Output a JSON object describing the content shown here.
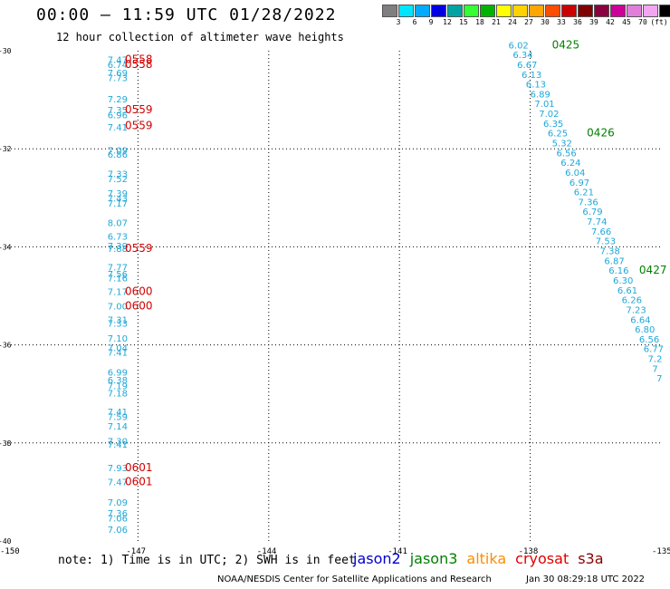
{
  "header": {
    "title": "00:00 – 11:59 UTC 01/28/2022",
    "subtitle": "12 hour collection of altimeter wave heights"
  },
  "color_scale": {
    "colors": [
      "#7f7f7f",
      "#00e5ff",
      "#00aaff",
      "#0000e6",
      "#00a3a3",
      "#33ff33",
      "#00b300",
      "#ffff00",
      "#ffd200",
      "#ffa500",
      "#ff4d00",
      "#cc0000",
      "#800000",
      "#8b0040",
      "#cc0099",
      "#e07fd9",
      "#f2a6f2",
      "#000000"
    ],
    "labels": [
      "3",
      "6",
      "9",
      "12",
      "15",
      "18",
      "21",
      "24",
      "27",
      "30",
      "33",
      "36",
      "39",
      "42",
      "45",
      "70",
      "(ft)"
    ]
  },
  "map": {
    "lon_range": [
      -150,
      -135
    ],
    "lat_range": [
      -40,
      -30
    ],
    "x_tick_labels": [
      "-150",
      "-147",
      "-144",
      "-141",
      "-138",
      "-135"
    ],
    "y_tick_labels": [
      "-30",
      "-32",
      "-34",
      "-36",
      "-38",
      "-40"
    ],
    "swh_color": "#1fa8d8",
    "time_color": "#d40000",
    "time_color_jason3": "#008000",
    "track_west": [
      {
        "lon": -147.7,
        "lat": -30.25,
        "v": "7.47"
      },
      {
        "lon": -147.7,
        "lat": -30.35,
        "v": "6.74"
      },
      {
        "lon": -147.7,
        "lat": -30.52,
        "v": "7.69"
      },
      {
        "lon": -147.7,
        "lat": -30.62,
        "v": "7.73"
      },
      {
        "lon": -147.7,
        "lat": -31.05,
        "v": "7.29"
      },
      {
        "lon": -147.7,
        "lat": -31.28,
        "v": "7.35"
      },
      {
        "lon": -147.7,
        "lat": -31.38,
        "v": "6.96"
      },
      {
        "lon": -147.7,
        "lat": -31.63,
        "v": "7.41"
      },
      {
        "lon": -147.7,
        "lat": -32.1,
        "v": "7.09"
      },
      {
        "lon": -147.7,
        "lat": -32.18,
        "v": "6.86"
      },
      {
        "lon": -147.7,
        "lat": -32.58,
        "v": "7.33"
      },
      {
        "lon": -147.7,
        "lat": -32.68,
        "v": "7.52"
      },
      {
        "lon": -147.7,
        "lat": -32.98,
        "v": "7.39"
      },
      {
        "lon": -147.7,
        "lat": -33.08,
        "v": "7.43"
      },
      {
        "lon": -147.7,
        "lat": -33.18,
        "v": "7.17"
      },
      {
        "lon": -147.7,
        "lat": -33.58,
        "v": "8.07"
      },
      {
        "lon": -147.7,
        "lat": -33.85,
        "v": "6.73"
      },
      {
        "lon": -147.7,
        "lat": -34.05,
        "v": "7.39"
      },
      {
        "lon": -147.7,
        "lat": -34.1,
        "v": "7.88"
      },
      {
        "lon": -147.7,
        "lat": -34.48,
        "v": "7.77"
      },
      {
        "lon": -147.7,
        "lat": -34.62,
        "v": "7.56"
      },
      {
        "lon": -147.7,
        "lat": -34.7,
        "v": "7.16"
      },
      {
        "lon": -147.7,
        "lat": -34.98,
        "v": "7.17"
      },
      {
        "lon": -147.7,
        "lat": -35.28,
        "v": "7.00"
      },
      {
        "lon": -147.7,
        "lat": -35.55,
        "v": "7.31"
      },
      {
        "lon": -147.7,
        "lat": -35.63,
        "v": "7.33"
      },
      {
        "lon": -147.7,
        "lat": -35.93,
        "v": "7.10"
      },
      {
        "lon": -147.7,
        "lat": -36.13,
        "v": "7.04"
      },
      {
        "lon": -147.7,
        "lat": -36.22,
        "v": "7.41"
      },
      {
        "lon": -147.7,
        "lat": -36.63,
        "v": "6.99"
      },
      {
        "lon": -147.7,
        "lat": -36.78,
        "v": "6.38"
      },
      {
        "lon": -147.7,
        "lat": -36.9,
        "v": "7.19"
      },
      {
        "lon": -147.7,
        "lat": -37.05,
        "v": "7.18"
      },
      {
        "lon": -147.7,
        "lat": -37.43,
        "v": "7.41"
      },
      {
        "lon": -147.7,
        "lat": -37.53,
        "v": "7.59"
      },
      {
        "lon": -147.7,
        "lat": -37.73,
        "v": "7.14"
      },
      {
        "lon": -147.7,
        "lat": -38.03,
        "v": "7.30"
      },
      {
        "lon": -147.7,
        "lat": -38.1,
        "v": "7.41"
      },
      {
        "lon": -147.7,
        "lat": -38.58,
        "v": "7.93"
      },
      {
        "lon": -147.7,
        "lat": -38.86,
        "v": "7.47"
      },
      {
        "lon": -147.7,
        "lat": -39.28,
        "v": "7.09"
      },
      {
        "lon": -147.7,
        "lat": -39.5,
        "v": "7.36"
      },
      {
        "lon": -147.7,
        "lat": -39.6,
        "v": "7.06"
      },
      {
        "lon": -147.7,
        "lat": -39.83,
        "v": "7.06"
      }
    ],
    "track_west_times": [
      {
        "lon": -147.3,
        "lat": -30.25,
        "v": "0558"
      },
      {
        "lon": -147.3,
        "lat": -30.35,
        "v": "0558"
      },
      {
        "lon": -147.3,
        "lat": -31.28,
        "v": "0559"
      },
      {
        "lon": -147.3,
        "lat": -31.6,
        "v": "0559"
      },
      {
        "lon": -147.3,
        "lat": -34.1,
        "v": "0559"
      },
      {
        "lon": -147.3,
        "lat": -34.98,
        "v": "0600"
      },
      {
        "lon": -147.3,
        "lat": -35.28,
        "v": "0600"
      },
      {
        "lon": -147.3,
        "lat": -38.58,
        "v": "0601"
      },
      {
        "lon": -147.3,
        "lat": -38.86,
        "v": "0601"
      }
    ],
    "track_east": [
      {
        "lon": -138.5,
        "lat": -29.95,
        "v": "6.02"
      },
      {
        "lon": -138.4,
        "lat": -30.15,
        "v": "6.34"
      },
      {
        "lon": -138.3,
        "lat": -30.35,
        "v": "6.67"
      },
      {
        "lon": -138.2,
        "lat": -30.55,
        "v": "6.13"
      },
      {
        "lon": -138.1,
        "lat": -30.75,
        "v": "6.13"
      },
      {
        "lon": -138.0,
        "lat": -30.95,
        "v": "6.89"
      },
      {
        "lon": -137.9,
        "lat": -31.15,
        "v": "7.01"
      },
      {
        "lon": -137.8,
        "lat": -31.35,
        "v": "7.02"
      },
      {
        "lon": -137.7,
        "lat": -31.55,
        "v": "6.35"
      },
      {
        "lon": -137.6,
        "lat": -31.75,
        "v": "6.25"
      },
      {
        "lon": -137.5,
        "lat": -31.95,
        "v": "5.32"
      },
      {
        "lon": -137.4,
        "lat": -32.15,
        "v": "6.56"
      },
      {
        "lon": -137.3,
        "lat": -32.35,
        "v": "6.24"
      },
      {
        "lon": -137.2,
        "lat": -32.55,
        "v": "6.04"
      },
      {
        "lon": -137.1,
        "lat": -32.75,
        "v": "6.97"
      },
      {
        "lon": -137.0,
        "lat": -32.95,
        "v": "6.21"
      },
      {
        "lon": -136.9,
        "lat": -33.15,
        "v": "7.36"
      },
      {
        "lon": -136.8,
        "lat": -33.35,
        "v": "6.79"
      },
      {
        "lon": -136.7,
        "lat": -33.55,
        "v": "7.74"
      },
      {
        "lon": -136.6,
        "lat": -33.75,
        "v": "7.66"
      },
      {
        "lon": -136.5,
        "lat": -33.95,
        "v": "7.53"
      },
      {
        "lon": -136.4,
        "lat": -34.15,
        "v": "7.38"
      },
      {
        "lon": -136.3,
        "lat": -34.35,
        "v": "6.87"
      },
      {
        "lon": -136.2,
        "lat": -34.55,
        "v": "6.16"
      },
      {
        "lon": -136.1,
        "lat": -34.75,
        "v": "6.30"
      },
      {
        "lon": -136.0,
        "lat": -34.95,
        "v": "6.61"
      },
      {
        "lon": -135.9,
        "lat": -35.15,
        "v": "6.26"
      },
      {
        "lon": -135.8,
        "lat": -35.35,
        "v": "7.23"
      },
      {
        "lon": -135.7,
        "lat": -35.55,
        "v": "6.64"
      },
      {
        "lon": -135.6,
        "lat": -35.75,
        "v": "6.80"
      },
      {
        "lon": -135.5,
        "lat": -35.95,
        "v": "6.56"
      },
      {
        "lon": -135.4,
        "lat": -36.15,
        "v": "6.77"
      },
      {
        "lon": -135.3,
        "lat": -36.35,
        "v": "7.2"
      },
      {
        "lon": -135.2,
        "lat": -36.55,
        "v": "7"
      },
      {
        "lon": -135.1,
        "lat": -36.75,
        "v": "7"
      }
    ],
    "track_east_times": [
      {
        "lon": -137.5,
        "lat": -29.95,
        "v": "0425"
      },
      {
        "lon": -136.7,
        "lat": -31.75,
        "v": "0426"
      },
      {
        "lon": -135.5,
        "lat": -34.55,
        "v": "0427"
      }
    ]
  },
  "footer": {
    "note": "note:  1) Time is in UTC;  2) SWH is in feet",
    "legend": [
      {
        "label": "jason2",
        "color": "#0000cc"
      },
      {
        "label": "jason3",
        "color": "#008000"
      },
      {
        "label": "altika",
        "color": "#ff8c00"
      },
      {
        "label": "cryosat",
        "color": "#e00000"
      },
      {
        "label": "s3a",
        "color": "#8b0000"
      }
    ],
    "credit": "NOAA/NESDIS Center for Satellite Applications and Research",
    "timestamp": "Jan 30 08:29:18 UTC 2022"
  }
}
